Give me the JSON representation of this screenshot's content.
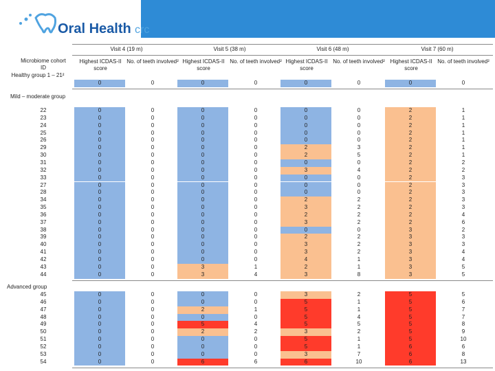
{
  "logo": {
    "name": "Oral Health",
    "suffix": "crc"
  },
  "table": {
    "id_header": "Microbiome cohort ID",
    "visits": [
      "Visit 4 (19 m)",
      "Visit 5 (38 m)",
      "Visit 6 (48 m)",
      "Visit 7 (60 m)"
    ],
    "score_header": "Highest ICDAS-II score",
    "teeth_header": "No. of teeth involved²",
    "groups": [
      {
        "label": "Healthy group 1 – 21²",
        "rows": [
          {
            "values": [
              0,
              0,
              0,
              0,
              0,
              0,
              0,
              0
            ]
          }
        ]
      },
      {
        "label": "Mild – moderate group",
        "rows": [
          {
            "id": "22",
            "values": [
              0,
              0,
              0,
              0,
              0,
              0,
              2,
              1
            ]
          },
          {
            "id": "23",
            "values": [
              0,
              0,
              0,
              0,
              0,
              0,
              2,
              1
            ]
          },
          {
            "id": "24",
            "values": [
              0,
              0,
              0,
              0,
              0,
              0,
              2,
              1
            ]
          },
          {
            "id": "25",
            "values": [
              0,
              0,
              0,
              0,
              0,
              0,
              2,
              1
            ]
          },
          {
            "id": "26",
            "values": [
              0,
              0,
              0,
              0,
              0,
              0,
              2,
              1
            ]
          },
          {
            "id": "29",
            "values": [
              0,
              0,
              0,
              0,
              2,
              3,
              2,
              1
            ]
          },
          {
            "id": "30",
            "values": [
              0,
              0,
              0,
              0,
              2,
              5,
              2,
              1
            ]
          },
          {
            "id": "31",
            "values": [
              0,
              0,
              0,
              0,
              0,
              0,
              2,
              2
            ]
          },
          {
            "id": "32",
            "values": [
              0,
              0,
              0,
              0,
              3,
              4,
              2,
              2
            ]
          },
          {
            "id": "33",
            "values": [
              0,
              0,
              0,
              0,
              0,
              0,
              2,
              3
            ]
          },
          {
            "id": "27",
            "values": [
              0,
              0,
              0,
              0,
              0,
              0,
              2,
              3
            ]
          },
          {
            "id": "28",
            "values": [
              0,
              0,
              0,
              0,
              0,
              0,
              2,
              3
            ]
          },
          {
            "id": "34",
            "values": [
              0,
              0,
              0,
              0,
              2,
              2,
              2,
              3
            ]
          },
          {
            "id": "35",
            "values": [
              0,
              0,
              0,
              0,
              3,
              2,
              2,
              3
            ]
          },
          {
            "id": "36",
            "values": [
              0,
              0,
              0,
              0,
              2,
              2,
              2,
              4
            ]
          },
          {
            "id": "37",
            "values": [
              0,
              0,
              0,
              0,
              3,
              2,
              2,
              6
            ]
          },
          {
            "id": "38",
            "values": [
              0,
              0,
              0,
              0,
              0,
              0,
              3,
              2
            ]
          },
          {
            "id": "39",
            "values": [
              0,
              0,
              0,
              0,
              2,
              2,
              3,
              3
            ]
          },
          {
            "id": "40",
            "values": [
              0,
              0,
              0,
              0,
              3,
              2,
              3,
              3
            ]
          },
          {
            "id": "41",
            "values": [
              0,
              0,
              0,
              0,
              3,
              2,
              3,
              4
            ]
          },
          {
            "id": "42",
            "values": [
              0,
              0,
              0,
              0,
              4,
              1,
              3,
              4
            ]
          },
          {
            "id": "43",
            "values": [
              0,
              0,
              3,
              1,
              2,
              1,
              3,
              5
            ]
          },
          {
            "id": "44",
            "values": [
              0,
              0,
              3,
              4,
              3,
              8,
              3,
              5
            ]
          }
        ]
      },
      {
        "label": "Advanced group",
        "rows": [
          {
            "id": "45",
            "values": [
              0,
              0,
              0,
              0,
              3,
              2,
              5,
              5
            ]
          },
          {
            "id": "46",
            "values": [
              0,
              0,
              0,
              0,
              5,
              1,
              5,
              6
            ]
          },
          {
            "id": "47",
            "values": [
              0,
              0,
              2,
              1,
              5,
              1,
              5,
              7
            ]
          },
          {
            "id": "48",
            "values": [
              0,
              0,
              0,
              0,
              5,
              4,
              5,
              7
            ]
          },
          {
            "id": "49",
            "values": [
              0,
              0,
              5,
              4,
              5,
              5,
              5,
              8
            ]
          },
          {
            "id": "50",
            "values": [
              0,
              0,
              2,
              2,
              3,
              2,
              5,
              9
            ]
          },
          {
            "id": "51",
            "values": [
              0,
              0,
              0,
              0,
              5,
              1,
              5,
              10
            ]
          },
          {
            "id": "52",
            "values": [
              0,
              0,
              0,
              0,
              5,
              1,
              6,
              6
            ]
          },
          {
            "id": "53",
            "values": [
              0,
              0,
              0,
              0,
              3,
              7,
              6,
              8
            ]
          },
          {
            "id": "54",
            "values": [
              0,
              0,
              6,
              6,
              6,
              10,
              6,
              13
            ]
          }
        ]
      }
    ]
  }
}
